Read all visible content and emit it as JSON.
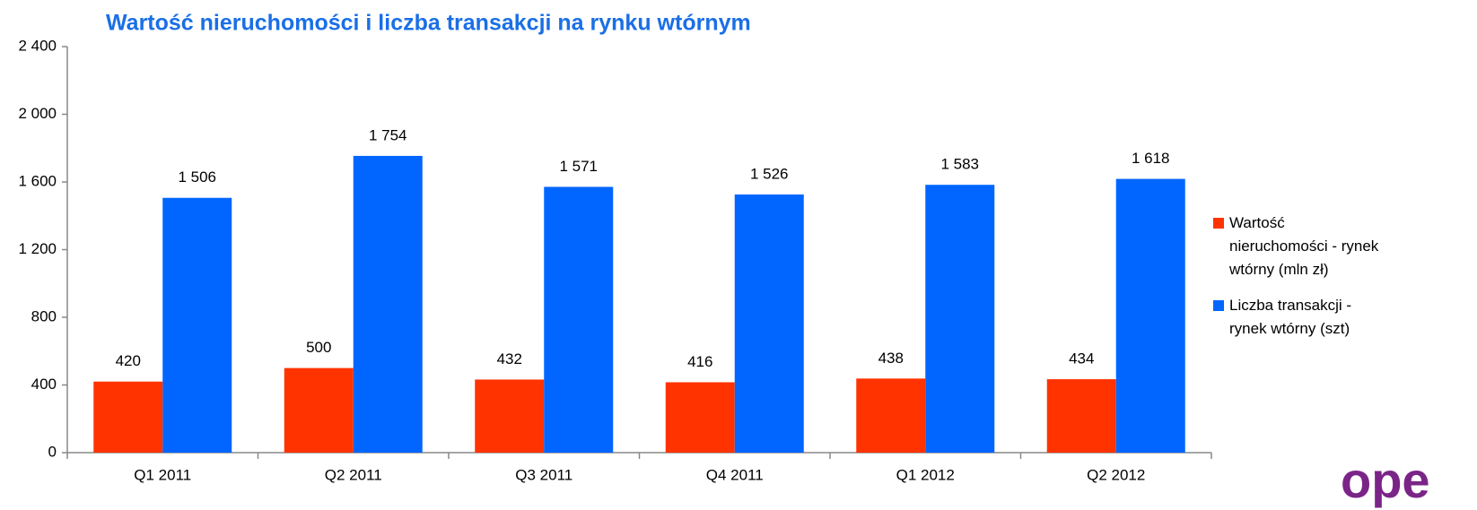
{
  "chart_data": {
    "type": "bar",
    "title": "Wartość nieruchomości i liczba transakcji na rynku wtórnym",
    "categories": [
      "Q1 2011",
      "Q2 2011",
      "Q3 2011",
      "Q4 2011",
      "Q1 2012",
      "Q2 2012"
    ],
    "series": [
      {
        "name": "Wartość nieruchomości - rynek wtórny (mln zł)",
        "color": "#ff3300",
        "values": [
          420,
          500,
          432,
          416,
          438,
          434
        ],
        "value_labels": [
          "420",
          "500",
          "432",
          "416",
          "438",
          "434"
        ]
      },
      {
        "name": "Liczba transakcji - rynek wtórny (szt)",
        "color": "#0066ff",
        "values": [
          1506,
          1754,
          1571,
          1526,
          1583,
          1618
        ],
        "value_labels": [
          "1 506",
          "1 754",
          "1 571",
          "1 526",
          "1 583",
          "1 618"
        ]
      }
    ],
    "ylim": [
      0,
      2400
    ],
    "yticks": [
      0,
      400,
      800,
      {
        "value": 1200,
        "label": "1 200"
      },
      {
        "value": 1600,
        "label": "1 600"
      },
      {
        "value": 2000,
        "label": "2 000"
      },
      {
        "value": 2400,
        "label": "2 400"
      }
    ],
    "grid": false,
    "legend": "right"
  },
  "logo": "ope"
}
